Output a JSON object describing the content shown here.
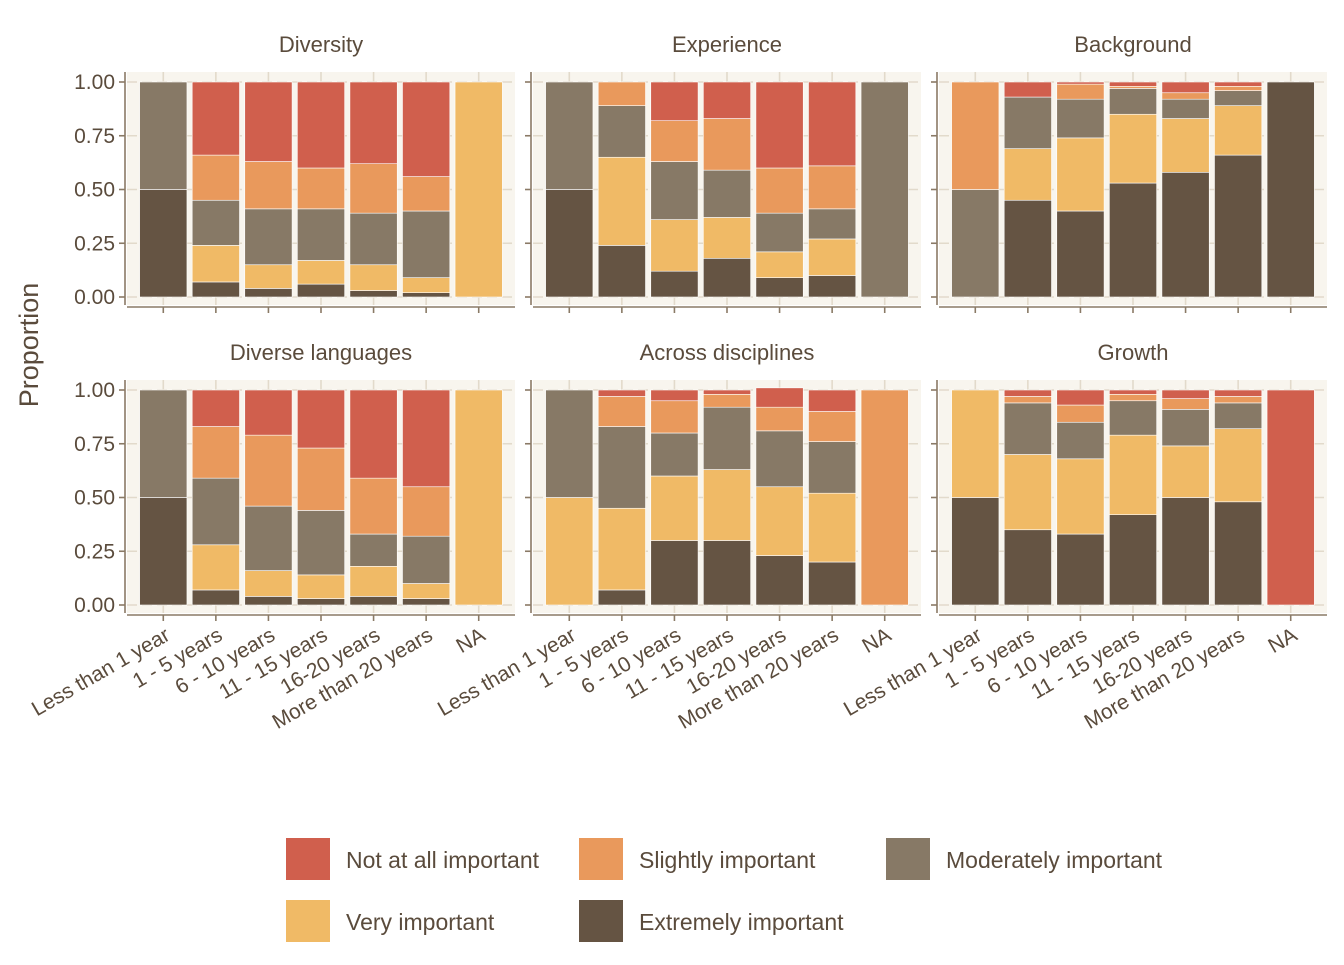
{
  "chart_data": {
    "type": "bar",
    "stacked": true,
    "ylabel": "Proportion",
    "ylim": [
      0,
      1
    ],
    "yticks": [
      "0.00",
      "0.25",
      "0.50",
      "0.75",
      "1.00"
    ],
    "categories": [
      "Less than 1 year",
      "1 - 5 years",
      "6 - 10 years",
      "11 - 15 years",
      "16-20 years",
      "More than 20 years",
      "NA"
    ],
    "stack_order_bottom_to_top": [
      "Extremely important",
      "Very important",
      "Moderately important",
      "Slightly important",
      "Not at all important"
    ],
    "legend": {
      "position": "bottom",
      "items": [
        {
          "label": "Not at all important",
          "color": "#D05F4D"
        },
        {
          "label": "Slightly important",
          "color": "#E9995C"
        },
        {
          "label": "Moderately important",
          "color": "#877966"
        },
        {
          "label": "Very important",
          "color": "#F0BA66"
        },
        {
          "label": "Extremely important",
          "color": "#655443"
        }
      ]
    },
    "panels": [
      {
        "title": "Diversity",
        "bars": [
          {
            "category": "Less than 1 year",
            "values": [
              0.5,
              0.0,
              0.5,
              0.0,
              0.0
            ]
          },
          {
            "category": "1 - 5 years",
            "values": [
              0.07,
              0.17,
              0.21,
              0.21,
              0.34
            ]
          },
          {
            "category": "6 - 10 years",
            "values": [
              0.04,
              0.11,
              0.26,
              0.22,
              0.37
            ]
          },
          {
            "category": "11 - 15 years",
            "values": [
              0.06,
              0.11,
              0.24,
              0.19,
              0.4
            ]
          },
          {
            "category": "16-20 years",
            "values": [
              0.03,
              0.12,
              0.24,
              0.23,
              0.38
            ]
          },
          {
            "category": "More than 20 years",
            "values": [
              0.02,
              0.07,
              0.31,
              0.16,
              0.44
            ]
          },
          {
            "category": "NA",
            "values": [
              0.0,
              1.0,
              0.0,
              0.0,
              0.0
            ]
          }
        ]
      },
      {
        "title": "Experience",
        "bars": [
          {
            "category": "Less than 1 year",
            "values": [
              0.5,
              0.0,
              0.5,
              0.0,
              0.0
            ]
          },
          {
            "category": "1 - 5 years",
            "values": [
              0.24,
              0.41,
              0.24,
              0.11,
              0.0
            ]
          },
          {
            "category": "6 - 10 years",
            "values": [
              0.12,
              0.24,
              0.27,
              0.19,
              0.18
            ]
          },
          {
            "category": "11 - 15 years",
            "values": [
              0.18,
              0.19,
              0.22,
              0.24,
              0.17
            ]
          },
          {
            "category": "16-20 years",
            "values": [
              0.09,
              0.12,
              0.18,
              0.21,
              0.4
            ]
          },
          {
            "category": "More than 20 years",
            "values": [
              0.1,
              0.17,
              0.14,
              0.2,
              0.39
            ]
          },
          {
            "category": "NA",
            "values": [
              0.0,
              0.0,
              1.0,
              0.0,
              0.0
            ]
          }
        ]
      },
      {
        "title": "Background",
        "bars": [
          {
            "category": "Less than 1 year",
            "values": [
              0.0,
              0.0,
              0.5,
              0.5,
              0.0
            ]
          },
          {
            "category": "1 - 5 years",
            "values": [
              0.45,
              0.24,
              0.24,
              0.0,
              0.07
            ]
          },
          {
            "category": "6 - 10 years",
            "values": [
              0.4,
              0.34,
              0.18,
              0.07,
              0.01
            ]
          },
          {
            "category": "11 - 15 years",
            "values": [
              0.53,
              0.32,
              0.12,
              0.01,
              0.02
            ]
          },
          {
            "category": "16-20 years",
            "values": [
              0.58,
              0.25,
              0.09,
              0.03,
              0.05
            ]
          },
          {
            "category": "More than 20 years",
            "values": [
              0.66,
              0.23,
              0.07,
              0.02,
              0.02
            ]
          },
          {
            "category": "NA",
            "values": [
              1.0,
              0.0,
              0.0,
              0.0,
              0.0
            ]
          }
        ]
      },
      {
        "title": "Diverse languages",
        "bars": [
          {
            "category": "Less than 1 year",
            "values": [
              0.5,
              0.0,
              0.5,
              0.0,
              0.0
            ]
          },
          {
            "category": "1 - 5 years",
            "values": [
              0.07,
              0.21,
              0.31,
              0.24,
              0.17
            ]
          },
          {
            "category": "6 - 10 years",
            "values": [
              0.04,
              0.12,
              0.3,
              0.33,
              0.21
            ]
          },
          {
            "category": "11 - 15 years",
            "values": [
              0.03,
              0.11,
              0.3,
              0.29,
              0.27
            ]
          },
          {
            "category": "16-20 years",
            "values": [
              0.04,
              0.14,
              0.15,
              0.26,
              0.41
            ]
          },
          {
            "category": "More than 20 years",
            "values": [
              0.03,
              0.07,
              0.22,
              0.23,
              0.45
            ]
          },
          {
            "category": "NA",
            "values": [
              0.0,
              1.0,
              0.0,
              0.0,
              0.0
            ]
          }
        ]
      },
      {
        "title": "Across disciplines",
        "bars": [
          {
            "category": "Less than 1 year",
            "values": [
              0.0,
              0.5,
              0.5,
              0.0,
              0.0
            ]
          },
          {
            "category": "1 - 5 years",
            "values": [
              0.07,
              0.38,
              0.38,
              0.14,
              0.03
            ]
          },
          {
            "category": "6 - 10 years",
            "values": [
              0.3,
              0.3,
              0.2,
              0.15,
              0.05
            ]
          },
          {
            "category": "11 - 15 years",
            "values": [
              0.3,
              0.33,
              0.29,
              0.06,
              0.02
            ]
          },
          {
            "category": "16-20 years",
            "values": [
              0.23,
              0.32,
              0.26,
              0.11,
              0.09
            ]
          },
          {
            "category": "More than 20 years",
            "values": [
              0.2,
              0.32,
              0.24,
              0.14,
              0.1
            ]
          },
          {
            "category": "NA",
            "values": [
              0.0,
              0.0,
              0.0,
              1.0,
              0.0
            ]
          }
        ]
      },
      {
        "title": "Growth",
        "bars": [
          {
            "category": "Less than 1 year",
            "values": [
              0.5,
              0.5,
              0.0,
              0.0,
              0.0
            ]
          },
          {
            "category": "1 - 5 years",
            "values": [
              0.35,
              0.35,
              0.24,
              0.03,
              0.03
            ]
          },
          {
            "category": "6 - 10 years",
            "values": [
              0.33,
              0.35,
              0.17,
              0.08,
              0.07
            ]
          },
          {
            "category": "11 - 15 years",
            "values": [
              0.42,
              0.37,
              0.16,
              0.03,
              0.02
            ]
          },
          {
            "category": "16-20 years",
            "values": [
              0.5,
              0.24,
              0.17,
              0.05,
              0.04
            ]
          },
          {
            "category": "More than 20 years",
            "values": [
              0.48,
              0.34,
              0.12,
              0.03,
              0.03
            ]
          },
          {
            "category": "NA",
            "values": [
              0.0,
              0.0,
              0.0,
              0.0,
              1.0
            ]
          }
        ]
      }
    ]
  }
}
